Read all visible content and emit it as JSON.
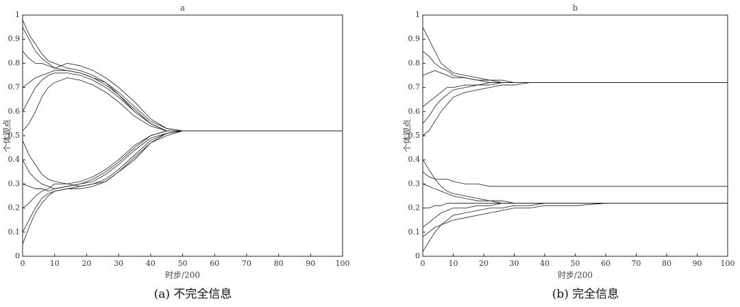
{
  "chart_data": [
    {
      "type": "line",
      "title": "a",
      "xlabel": "时步/200",
      "ylabel": "个体观点",
      "caption": "(a) 不完全信息",
      "color": "#1a1a1a",
      "xlim": [
        0,
        100
      ],
      "ylim": [
        0,
        1
      ],
      "xticks": [
        0,
        10,
        20,
        30,
        40,
        50,
        60,
        70,
        80,
        90,
        100
      ],
      "yticks": [
        0,
        0.1,
        0.2,
        0.3,
        0.4,
        0.5,
        0.6,
        0.7,
        0.8,
        0.9,
        1
      ],
      "x": [
        0,
        2,
        4,
        6,
        8,
        10,
        14,
        18,
        22,
        26,
        30,
        35,
        40,
        45,
        50,
        60,
        70,
        80,
        90,
        100
      ],
      "series": [
        {
          "values": [
            0.95,
            0.9,
            0.85,
            0.82,
            0.8,
            0.78,
            0.77,
            0.76,
            0.74,
            0.72,
            0.68,
            0.62,
            0.56,
            0.53,
            0.52,
            0.52,
            0.52,
            0.52,
            0.52,
            0.52
          ]
        },
        {
          "values": [
            0.05,
            0.12,
            0.18,
            0.22,
            0.25,
            0.27,
            0.28,
            0.29,
            0.3,
            0.32,
            0.36,
            0.42,
            0.48,
            0.51,
            0.52,
            0.52,
            0.52,
            0.52,
            0.52,
            0.52
          ]
        },
        {
          "values": [
            0.6,
            0.65,
            0.7,
            0.73,
            0.75,
            0.76,
            0.76,
            0.75,
            0.73,
            0.7,
            0.66,
            0.6,
            0.55,
            0.52,
            0.52,
            0.52,
            0.52,
            0.52,
            0.52,
            0.52
          ]
        },
        {
          "values": [
            0.4,
            0.35,
            0.32,
            0.3,
            0.29,
            0.28,
            0.29,
            0.3,
            0.31,
            0.34,
            0.38,
            0.44,
            0.49,
            0.51,
            0.52,
            0.52,
            0.52,
            0.52,
            0.52,
            0.52
          ]
        },
        {
          "values": [
            0.85,
            0.82,
            0.8,
            0.8,
            0.79,
            0.78,
            0.8,
            0.79,
            0.77,
            0.74,
            0.7,
            0.64,
            0.57,
            0.53,
            0.52,
            0.52,
            0.52,
            0.52,
            0.52,
            0.52
          ]
        },
        {
          "values": [
            0.2,
            0.22,
            0.25,
            0.27,
            0.28,
            0.3,
            0.3,
            0.29,
            0.3,
            0.31,
            0.35,
            0.41,
            0.47,
            0.5,
            0.52,
            0.52,
            0.52,
            0.52,
            0.52,
            0.52
          ]
        },
        {
          "values": [
            0.52,
            0.55,
            0.6,
            0.66,
            0.7,
            0.72,
            0.74,
            0.73,
            0.71,
            0.68,
            0.64,
            0.58,
            0.54,
            0.52,
            0.52,
            0.52,
            0.52,
            0.52,
            0.52,
            0.52
          ]
        },
        {
          "values": [
            0.48,
            0.42,
            0.38,
            0.34,
            0.32,
            0.31,
            0.3,
            0.31,
            0.33,
            0.36,
            0.4,
            0.46,
            0.5,
            0.52,
            0.52,
            0.52,
            0.52,
            0.52,
            0.52,
            0.52
          ]
        },
        {
          "values": [
            0.98,
            0.92,
            0.88,
            0.84,
            0.81,
            0.8,
            0.78,
            0.77,
            0.75,
            0.72,
            0.67,
            0.61,
            0.55,
            0.52,
            0.52,
            0.52,
            0.52,
            0.52,
            0.52,
            0.52
          ]
        },
        {
          "values": [
            0.1,
            0.15,
            0.2,
            0.24,
            0.26,
            0.27,
            0.28,
            0.28,
            0.29,
            0.31,
            0.35,
            0.4,
            0.47,
            0.51,
            0.52,
            0.52,
            0.52,
            0.52,
            0.52,
            0.52
          ]
        },
        {
          "values": [
            0.7,
            0.72,
            0.74,
            0.75,
            0.76,
            0.77,
            0.77,
            0.76,
            0.74,
            0.71,
            0.67,
            0.6,
            0.55,
            0.52,
            0.52,
            0.52,
            0.52,
            0.52,
            0.52,
            0.52
          ]
        },
        {
          "values": [
            0.3,
            0.29,
            0.28,
            0.28,
            0.27,
            0.28,
            0.29,
            0.3,
            0.32,
            0.35,
            0.39,
            0.45,
            0.5,
            0.52,
            0.52,
            0.52,
            0.52,
            0.52,
            0.52,
            0.52
          ]
        }
      ]
    },
    {
      "type": "line",
      "title": "b",
      "xlabel": "时步/200",
      "ylabel": "个体观点",
      "caption": "(b) 完全信息",
      "color": "#1a1a1a",
      "xlim": [
        0,
        100
      ],
      "ylim": [
        0,
        1
      ],
      "xticks": [
        0,
        10,
        20,
        30,
        40,
        50,
        60,
        70,
        80,
        90,
        100
      ],
      "yticks": [
        0,
        0.1,
        0.2,
        0.3,
        0.4,
        0.5,
        0.6,
        0.7,
        0.8,
        0.9,
        1
      ],
      "x": [
        0,
        2,
        4,
        6,
        8,
        10,
        14,
        18,
        22,
        26,
        30,
        35,
        40,
        45,
        50,
        60,
        70,
        80,
        90,
        100
      ],
      "series": [
        {
          "values": [
            0.95,
            0.9,
            0.85,
            0.8,
            0.78,
            0.76,
            0.75,
            0.74,
            0.73,
            0.73,
            0.72,
            0.72,
            0.72,
            0.72,
            0.72,
            0.72,
            0.72,
            0.72,
            0.72,
            0.72
          ]
        },
        {
          "values": [
            0.55,
            0.58,
            0.62,
            0.65,
            0.67,
            0.69,
            0.7,
            0.71,
            0.71,
            0.72,
            0.72,
            0.72,
            0.72,
            0.72,
            0.72,
            0.72,
            0.72,
            0.72,
            0.72,
            0.72
          ]
        },
        {
          "values": [
            0.85,
            0.83,
            0.8,
            0.78,
            0.77,
            0.75,
            0.74,
            0.73,
            0.73,
            0.72,
            0.72,
            0.72,
            0.72,
            0.72,
            0.72,
            0.72,
            0.72,
            0.72,
            0.72,
            0.72
          ]
        },
        {
          "values": [
            0.62,
            0.64,
            0.66,
            0.68,
            0.7,
            0.7,
            0.71,
            0.71,
            0.72,
            0.72,
            0.72,
            0.72,
            0.72,
            0.72,
            0.72,
            0.72,
            0.72,
            0.72,
            0.72,
            0.72
          ]
        },
        {
          "values": [
            0.75,
            0.76,
            0.77,
            0.76,
            0.75,
            0.74,
            0.74,
            0.73,
            0.72,
            0.72,
            0.72,
            0.72,
            0.72,
            0.72,
            0.72,
            0.72,
            0.72,
            0.72,
            0.72,
            0.72
          ]
        },
        {
          "values": [
            0.5,
            0.52,
            0.56,
            0.6,
            0.63,
            0.66,
            0.68,
            0.69,
            0.7,
            0.71,
            0.71,
            0.72,
            0.72,
            0.72,
            0.72,
            0.72,
            0.72,
            0.72,
            0.72,
            0.72
          ]
        },
        {
          "values": [
            0.02,
            0.06,
            0.1,
            0.13,
            0.15,
            0.17,
            0.18,
            0.19,
            0.2,
            0.2,
            0.21,
            0.21,
            0.22,
            0.22,
            0.22,
            0.22,
            0.22,
            0.22,
            0.22,
            0.22
          ]
        },
        {
          "values": [
            0.4,
            0.36,
            0.32,
            0.29,
            0.27,
            0.26,
            0.25,
            0.24,
            0.23,
            0.23,
            0.22,
            0.22,
            0.22,
            0.22,
            0.22,
            0.22,
            0.22,
            0.22,
            0.22,
            0.22
          ]
        },
        {
          "values": [
            0.3,
            0.29,
            0.28,
            0.27,
            0.26,
            0.25,
            0.24,
            0.23,
            0.23,
            0.22,
            0.22,
            0.22,
            0.22,
            0.22,
            0.22,
            0.22,
            0.22,
            0.22,
            0.22,
            0.22
          ]
        },
        {
          "values": [
            0.12,
            0.14,
            0.16,
            0.18,
            0.19,
            0.2,
            0.2,
            0.21,
            0.21,
            0.22,
            0.22,
            0.22,
            0.22,
            0.22,
            0.22,
            0.22,
            0.22,
            0.22,
            0.22,
            0.22
          ]
        },
        {
          "values": [
            0.35,
            0.33,
            0.32,
            0.32,
            0.32,
            0.31,
            0.3,
            0.3,
            0.29,
            0.29,
            0.29,
            0.29,
            0.29,
            0.29,
            0.29,
            0.29,
            0.29,
            0.29,
            0.29,
            0.29
          ]
        },
        {
          "values": [
            0.2,
            0.2,
            0.21,
            0.21,
            0.22,
            0.22,
            0.22,
            0.22,
            0.22,
            0.22,
            0.22,
            0.22,
            0.22,
            0.22,
            0.22,
            0.22,
            0.22,
            0.22,
            0.22,
            0.22
          ]
        },
        {
          "values": [
            0.08,
            0.1,
            0.12,
            0.13,
            0.14,
            0.15,
            0.16,
            0.17,
            0.18,
            0.19,
            0.2,
            0.2,
            0.21,
            0.21,
            0.21,
            0.22,
            0.22,
            0.22,
            0.22,
            0.22
          ]
        }
      ]
    }
  ]
}
